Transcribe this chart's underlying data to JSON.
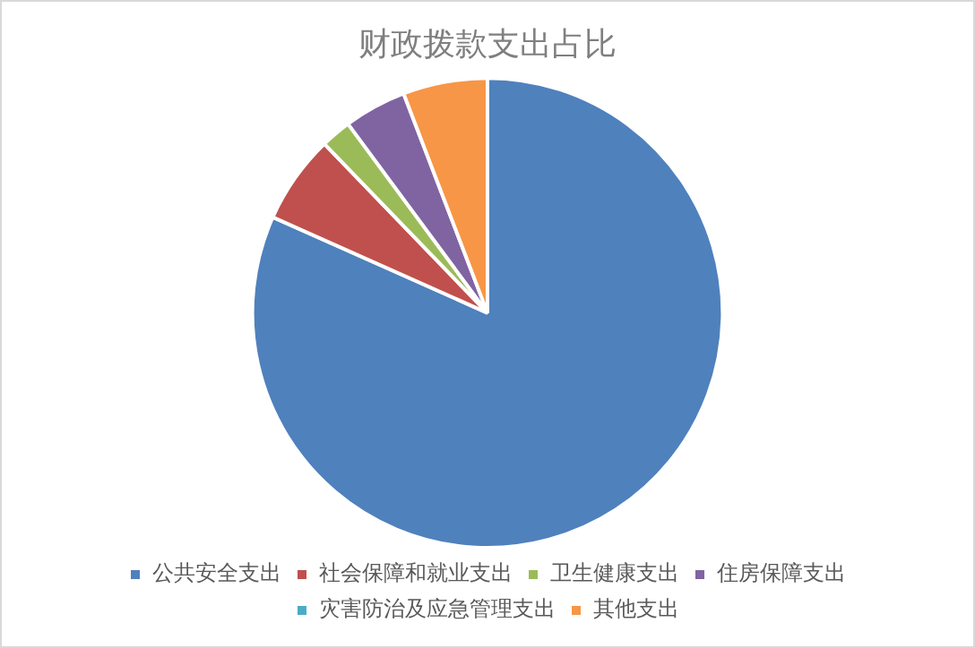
{
  "chart_data": {
    "type": "pie",
    "title": "财政拨款支出占比",
    "categories": [
      "公共安全支出",
      "社会保障和就业支出",
      "卫生健康支出",
      "住房保障支出",
      "灾害防治及应急管理支出",
      "其他支出"
    ],
    "values": [
      81.6,
      6.1,
      2.1,
      4.3,
      null,
      5.8
    ],
    "colors": [
      "#4f81bd",
      "#c0504d",
      "#9bbb59",
      "#8064a2",
      "#4bacc6",
      "#f79646"
    ],
    "legend": "bottom"
  }
}
